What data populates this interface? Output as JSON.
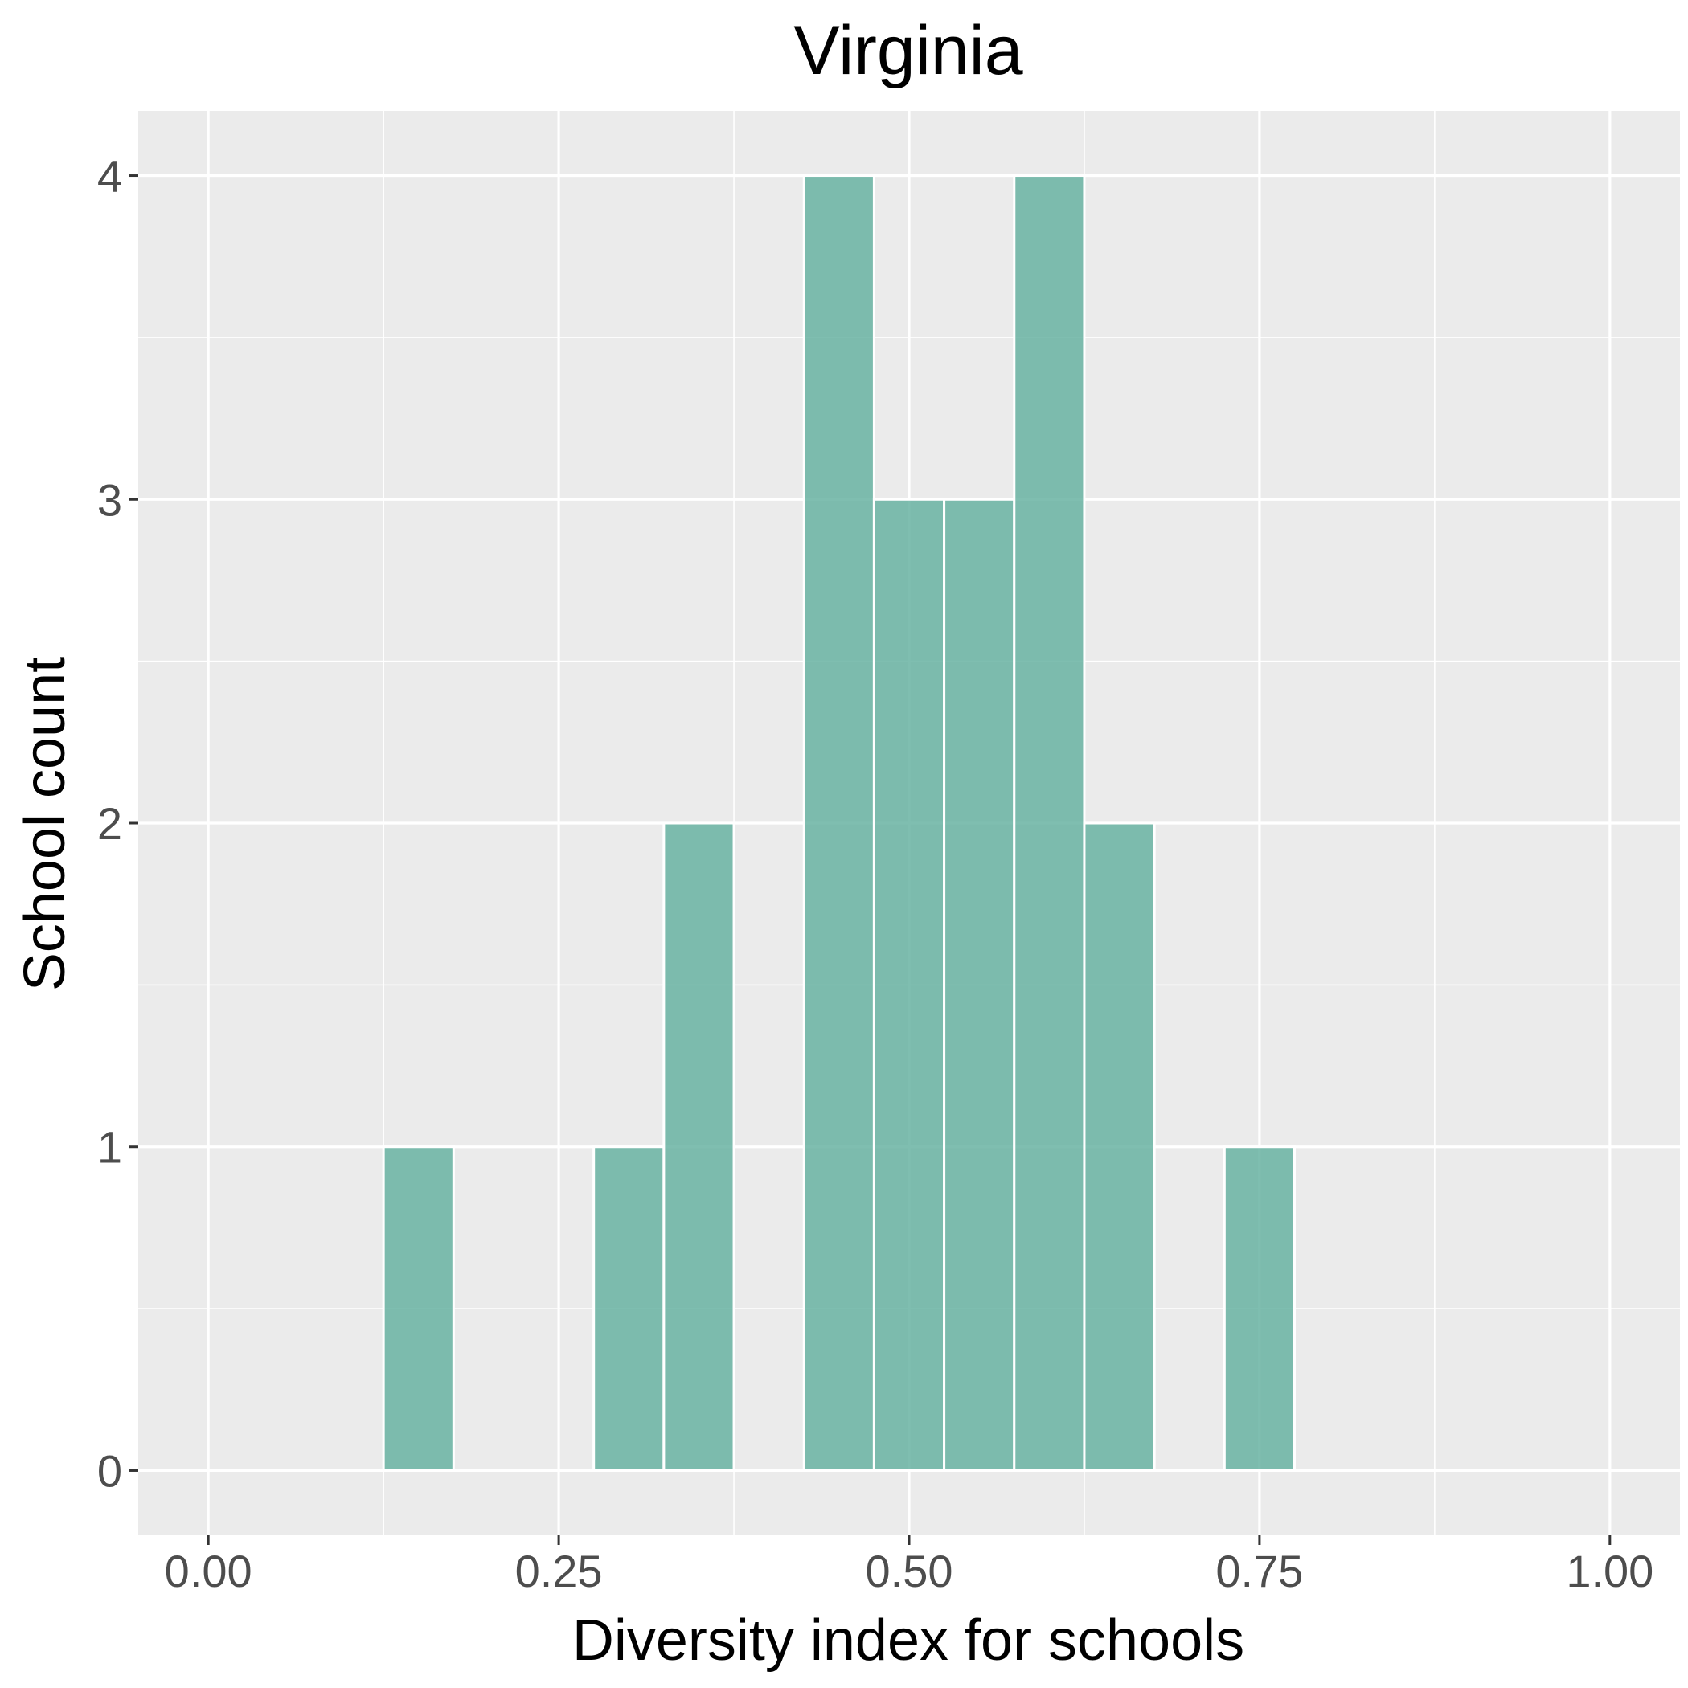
{
  "chart_data": {
    "type": "bar",
    "title": "Virginia",
    "xlabel": "Diversity index for schools",
    "ylabel": "School count",
    "xlim": [
      -0.05,
      1.05
    ],
    "ylim": [
      -0.2,
      4.2
    ],
    "x_ticks": [
      0,
      0.25,
      0.5,
      0.75,
      1
    ],
    "x_tick_labels": [
      "0.00",
      "0.25",
      "0.50",
      "0.75",
      "1.00"
    ],
    "y_ticks": [
      0,
      1,
      2,
      3,
      4
    ],
    "y_tick_labels": [
      "0",
      "1",
      "2",
      "3",
      "4"
    ],
    "bin_width": 0.05,
    "bins": [
      {
        "center": 0.05,
        "count": 0
      },
      {
        "center": 0.1,
        "count": 0
      },
      {
        "center": 0.15,
        "count": 1
      },
      {
        "center": 0.2,
        "count": 0
      },
      {
        "center": 0.25,
        "count": 0
      },
      {
        "center": 0.3,
        "count": 1
      },
      {
        "center": 0.35,
        "count": 2
      },
      {
        "center": 0.4,
        "count": 0
      },
      {
        "center": 0.45,
        "count": 4
      },
      {
        "center": 0.5,
        "count": 3
      },
      {
        "center": 0.55,
        "count": 3
      },
      {
        "center": 0.6,
        "count": 4
      },
      {
        "center": 0.65,
        "count": 2
      },
      {
        "center": 0.7,
        "count": 0
      },
      {
        "center": 0.75,
        "count": 1
      },
      {
        "center": 0.8,
        "count": 0
      },
      {
        "center": 0.85,
        "count": 0
      },
      {
        "center": 0.9,
        "count": 0
      },
      {
        "center": 0.95,
        "count": 0
      }
    ],
    "grid": true,
    "colors": {
      "bar_fill": "#69b3a2",
      "panel_background": "#ebebeb",
      "grid": "#ffffff"
    }
  }
}
